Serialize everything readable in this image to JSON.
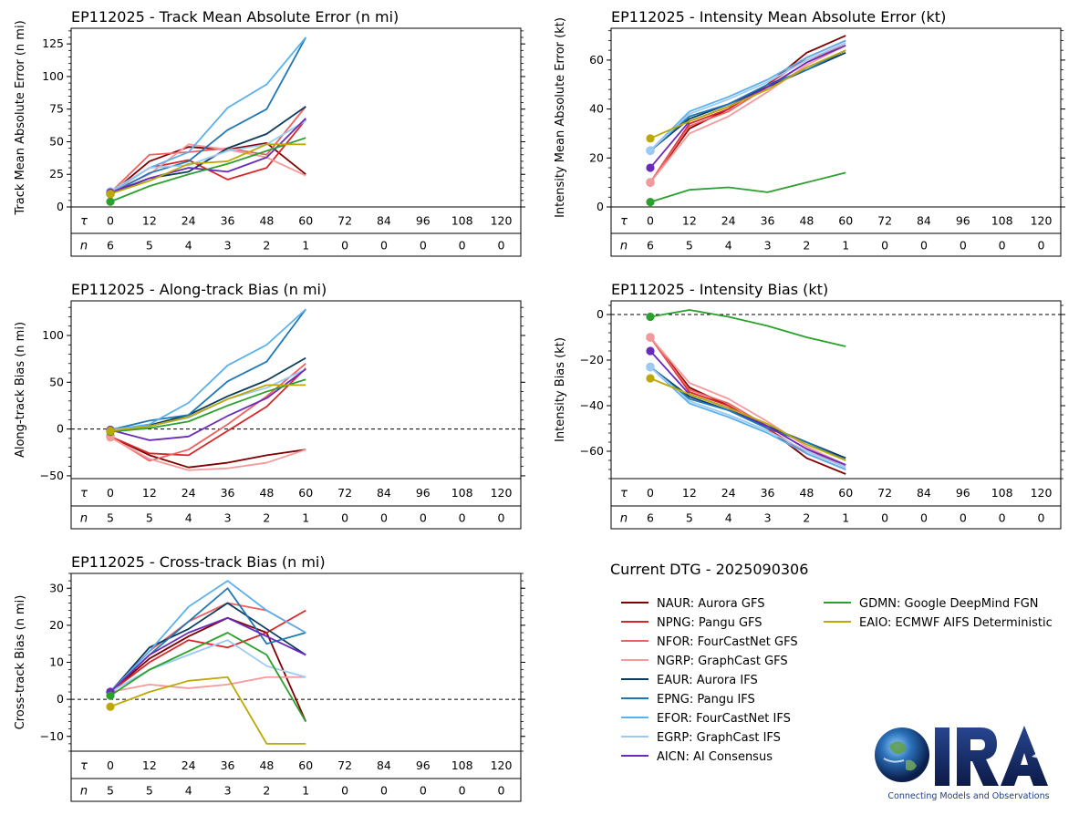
{
  "domain_note": "Tropical cyclone model verification panels",
  "colors": {
    "NAUR": "#800000",
    "NPNG": "#d62728",
    "NFOR": "#ef6060",
    "NGRP": "#f59a9a",
    "EAUR": "#0b3c5d",
    "EPNG": "#1f77b4",
    "EFOR": "#5ab0ec",
    "EGRP": "#9ccaf4",
    "AICN": "#6a2bbd",
    "GDMN": "#2ca02c",
    "EAIO": "#bca806"
  },
  "models": [
    {
      "code": "NAUR",
      "label": "NAUR: Aurora GFS"
    },
    {
      "code": "NPNG",
      "label": "NPNG: Pangu GFS"
    },
    {
      "code": "NFOR",
      "label": "NFOR: FourCastNet GFS"
    },
    {
      "code": "NGRP",
      "label": "NGRP: GraphCast GFS"
    },
    {
      "code": "EAUR",
      "label": "EAUR: Aurora IFS"
    },
    {
      "code": "EPNG",
      "label": "EPNG: Pangu IFS"
    },
    {
      "code": "EFOR",
      "label": "EFOR: FourCastNet IFS"
    },
    {
      "code": "EGRP",
      "label": "EGRP: GraphCast IFS"
    },
    {
      "code": "AICN",
      "label": "AICN: AI Consensus"
    },
    {
      "code": "GDMN",
      "label": "GDMN: Google DeepMind FGN"
    },
    {
      "code": "EAIO",
      "label": "EAIO: ECMWF AIFS Deterministic"
    }
  ],
  "legend": {
    "title": "Current DTG - 2025090306"
  },
  "logo": {
    "text": "CIRA",
    "tagline": "Connecting Models and Observations"
  },
  "chart_data": [
    {
      "id": "track",
      "type": "line",
      "title": "EP112025 - Track Mean Absolute Error (n mi)",
      "ylabel": "Track Mean Absolute Error (n mi)",
      "ylim": [
        0,
        137
      ],
      "yticks": [
        0,
        25,
        50,
        75,
        100,
        125
      ],
      "zero_line": false,
      "x": [
        0,
        12,
        24,
        36,
        48,
        60
      ],
      "tau_labels": [
        "0",
        "12",
        "24",
        "36",
        "48",
        "60",
        "72",
        "84",
        "96",
        "108",
        "120"
      ],
      "n_labels": [
        "6",
        "5",
        "4",
        "3",
        "2",
        "1",
        "0",
        "0",
        "0",
        "0",
        "0"
      ],
      "series": [
        {
          "name": "NAUR",
          "values": [
            10,
            35,
            46,
            44,
            49,
            25
          ]
        },
        {
          "name": "NPNG",
          "values": [
            11,
            30,
            36,
            21,
            30,
            67
          ]
        },
        {
          "name": "NFOR",
          "values": [
            11,
            40,
            42,
            45,
            40,
            77
          ]
        },
        {
          "name": "NGRP",
          "values": [
            12,
            25,
            48,
            44,
            38,
            24
          ]
        },
        {
          "name": "EAUR",
          "values": [
            10,
            22,
            27,
            45,
            56,
            77
          ]
        },
        {
          "name": "EPNG",
          "values": [
            10,
            26,
            35,
            59,
            75,
            130
          ]
        },
        {
          "name": "EFOR",
          "values": [
            11,
            30,
            42,
            76,
            94,
            130
          ]
        },
        {
          "name": "EGRP",
          "values": [
            12,
            30,
            32,
            43,
            48,
            66
          ]
        },
        {
          "name": "AICN",
          "values": [
            11,
            22,
            30,
            27,
            38,
            68
          ]
        },
        {
          "name": "GDMN",
          "values": [
            4,
            16,
            25,
            33,
            43,
            53
          ]
        },
        {
          "name": "EAIO",
          "values": [
            10,
            20,
            33,
            35,
            48,
            48
          ]
        }
      ]
    },
    {
      "id": "intensity",
      "type": "line",
      "title": "EP112025 - Intensity Mean Absolute Error (kt)",
      "ylabel": "Intensity Mean Absolute Error (kt)",
      "ylim": [
        0,
        73
      ],
      "yticks": [
        0,
        20,
        40,
        60
      ],
      "zero_line": false,
      "x": [
        0,
        12,
        24,
        36,
        48,
        60
      ],
      "tau_labels": [
        "0",
        "12",
        "24",
        "36",
        "48",
        "60",
        "72",
        "84",
        "96",
        "108",
        "120"
      ],
      "n_labels": [
        "6",
        "5",
        "4",
        "3",
        "2",
        "1",
        "0",
        "0",
        "0",
        "0",
        "0"
      ],
      "series": [
        {
          "name": "NAUR",
          "values": [
            10,
            32,
            40,
            50,
            63,
            70
          ]
        },
        {
          "name": "NPNG",
          "values": [
            10,
            34,
            40,
            50,
            61,
            68
          ]
        },
        {
          "name": "NFOR",
          "values": [
            10,
            33,
            39,
            49,
            59,
            67
          ]
        },
        {
          "name": "NGRP",
          "values": [
            10,
            30,
            37,
            47,
            58,
            66
          ]
        },
        {
          "name": "EAUR",
          "values": [
            23,
            36,
            42,
            49,
            56,
            63
          ]
        },
        {
          "name": "EPNG",
          "values": [
            23,
            37,
            42,
            50,
            56,
            64
          ]
        },
        {
          "name": "EFOR",
          "values": [
            23,
            39,
            45,
            52,
            61,
            68
          ]
        },
        {
          "name": "EGRP",
          "values": [
            23,
            38,
            44,
            51,
            60,
            67
          ]
        },
        {
          "name": "AICN",
          "values": [
            16,
            35,
            41,
            49,
            59,
            66
          ]
        },
        {
          "name": "GDMN",
          "values": [
            2,
            7,
            8,
            6,
            10,
            14
          ]
        },
        {
          "name": "EAIO",
          "values": [
            28,
            35,
            41,
            48,
            57,
            64
          ]
        }
      ]
    },
    {
      "id": "along",
      "type": "line",
      "title": "EP112025 - Along-track Bias (n mi)",
      "ylabel": "Along-track Bias (n mi)",
      "ylim": [
        -53,
        137
      ],
      "yticks": [
        -50,
        0,
        50,
        100
      ],
      "zero_line": true,
      "x": [
        0,
        12,
        24,
        36,
        48,
        60
      ],
      "tau_labels": [
        "0",
        "12",
        "24",
        "36",
        "48",
        "60",
        "72",
        "84",
        "96",
        "108",
        "120"
      ],
      "n_labels": [
        "5",
        "5",
        "4",
        "3",
        "2",
        "1",
        "0",
        "0",
        "0",
        "0",
        "0"
      ],
      "series": [
        {
          "name": "NAUR",
          "values": [
            -8,
            -28,
            -41,
            -36,
            -28,
            -22
          ]
        },
        {
          "name": "NPNG",
          "values": [
            -8,
            -26,
            -28,
            -2,
            24,
            65
          ]
        },
        {
          "name": "NFOR",
          "values": [
            -8,
            -34,
            -22,
            5,
            35,
            70
          ]
        },
        {
          "name": "NGRP",
          "values": [
            -9,
            -32,
            -44,
            -42,
            -36,
            -22
          ]
        },
        {
          "name": "EAUR",
          "values": [
            -1,
            4,
            15,
            35,
            52,
            76
          ]
        },
        {
          "name": "EPNG",
          "values": [
            -1,
            9,
            15,
            51,
            72,
            128
          ]
        },
        {
          "name": "EFOR",
          "values": [
            -1,
            5,
            28,
            68,
            90,
            128
          ]
        },
        {
          "name": "EGRP",
          "values": [
            -1,
            3,
            12,
            32,
            44,
            64
          ]
        },
        {
          "name": "AICN",
          "values": [
            -1,
            -12,
            -8,
            14,
            33,
            64
          ]
        },
        {
          "name": "GDMN",
          "values": [
            -3,
            1,
            8,
            25,
            40,
            53
          ]
        },
        {
          "name": "EAIO",
          "values": [
            -2,
            3,
            13,
            32,
            47,
            47
          ]
        }
      ]
    },
    {
      "id": "intbias",
      "type": "line",
      "title": "EP112025 - Intensity Bias (kt)",
      "ylabel": "Intensity Bias (kt)",
      "ylim": [
        -72,
        6
      ],
      "yticks": [
        -60,
        -40,
        -20,
        0
      ],
      "zero_line": true,
      "x": [
        0,
        12,
        24,
        36,
        48,
        60
      ],
      "tau_labels": [
        "0",
        "12",
        "24",
        "36",
        "48",
        "60",
        "72",
        "84",
        "96",
        "108",
        "120"
      ],
      "n_labels": [
        "6",
        "5",
        "4",
        "3",
        "2",
        "1",
        "0",
        "0",
        "0",
        "0",
        "0"
      ],
      "series": [
        {
          "name": "NAUR",
          "values": [
            -10,
            -32,
            -40,
            -50,
            -63,
            -70
          ]
        },
        {
          "name": "NPNG",
          "values": [
            -10,
            -34,
            -40,
            -50,
            -61,
            -68
          ]
        },
        {
          "name": "NFOR",
          "values": [
            -10,
            -33,
            -39,
            -49,
            -59,
            -67
          ]
        },
        {
          "name": "NGRP",
          "values": [
            -10,
            -30,
            -37,
            -47,
            -58,
            -66
          ]
        },
        {
          "name": "EAUR",
          "values": [
            -23,
            -36,
            -42,
            -49,
            -56,
            -63
          ]
        },
        {
          "name": "EPNG",
          "values": [
            -23,
            -37,
            -42,
            -50,
            -56,
            -64
          ]
        },
        {
          "name": "EFOR",
          "values": [
            -23,
            -39,
            -45,
            -52,
            -61,
            -68
          ]
        },
        {
          "name": "EGRP",
          "values": [
            -23,
            -38,
            -44,
            -51,
            -60,
            -67
          ]
        },
        {
          "name": "AICN",
          "values": [
            -16,
            -35,
            -41,
            -49,
            -59,
            -66
          ]
        },
        {
          "name": "GDMN",
          "values": [
            -1,
            2,
            -1,
            -5,
            -10,
            -14
          ]
        },
        {
          "name": "EAIO",
          "values": [
            -28,
            -35,
            -41,
            -48,
            -57,
            -64
          ]
        }
      ]
    },
    {
      "id": "cross",
      "type": "line",
      "title": "EP112025 - Cross-track Bias (n mi)",
      "ylabel": "Cross-track Bias (n mi)",
      "ylim": [
        -14,
        34
      ],
      "yticks": [
        -10,
        0,
        10,
        20,
        30
      ],
      "zero_line": true,
      "x": [
        0,
        12,
        24,
        36,
        48,
        60
      ],
      "tau_labels": [
        "0",
        "12",
        "24",
        "36",
        "48",
        "60",
        "72",
        "84",
        "96",
        "108",
        "120"
      ],
      "n_labels": [
        "5",
        "5",
        "4",
        "3",
        "2",
        "1",
        "0",
        "0",
        "0",
        "0",
        "0"
      ],
      "series": [
        {
          "name": "NAUR",
          "values": [
            2,
            11,
            17,
            22,
            18,
            -6
          ]
        },
        {
          "name": "NPNG",
          "values": [
            2,
            10,
            16,
            14,
            18,
            24
          ]
        },
        {
          "name": "NFOR",
          "values": [
            2,
            13,
            21,
            26,
            24,
            18
          ]
        },
        {
          "name": "NGRP",
          "values": [
            2,
            4,
            3,
            4,
            6,
            6
          ]
        },
        {
          "name": "EAUR",
          "values": [
            2,
            14,
            19,
            26,
            19,
            12
          ]
        },
        {
          "name": "EPNG",
          "values": [
            2,
            12,
            21,
            30,
            15,
            18
          ]
        },
        {
          "name": "EFOR",
          "values": [
            2,
            13,
            25,
            32,
            24,
            18
          ]
        },
        {
          "name": "EGRP",
          "values": [
            2,
            8,
            12,
            16,
            9,
            6
          ]
        },
        {
          "name": "AICN",
          "values": [
            2,
            12,
            18,
            22,
            17,
            12
          ]
        },
        {
          "name": "GDMN",
          "values": [
            1,
            8,
            13,
            18,
            12,
            -6
          ]
        },
        {
          "name": "EAIO",
          "values": [
            -2,
            2,
            5,
            6,
            -12,
            -12
          ]
        }
      ]
    }
  ]
}
